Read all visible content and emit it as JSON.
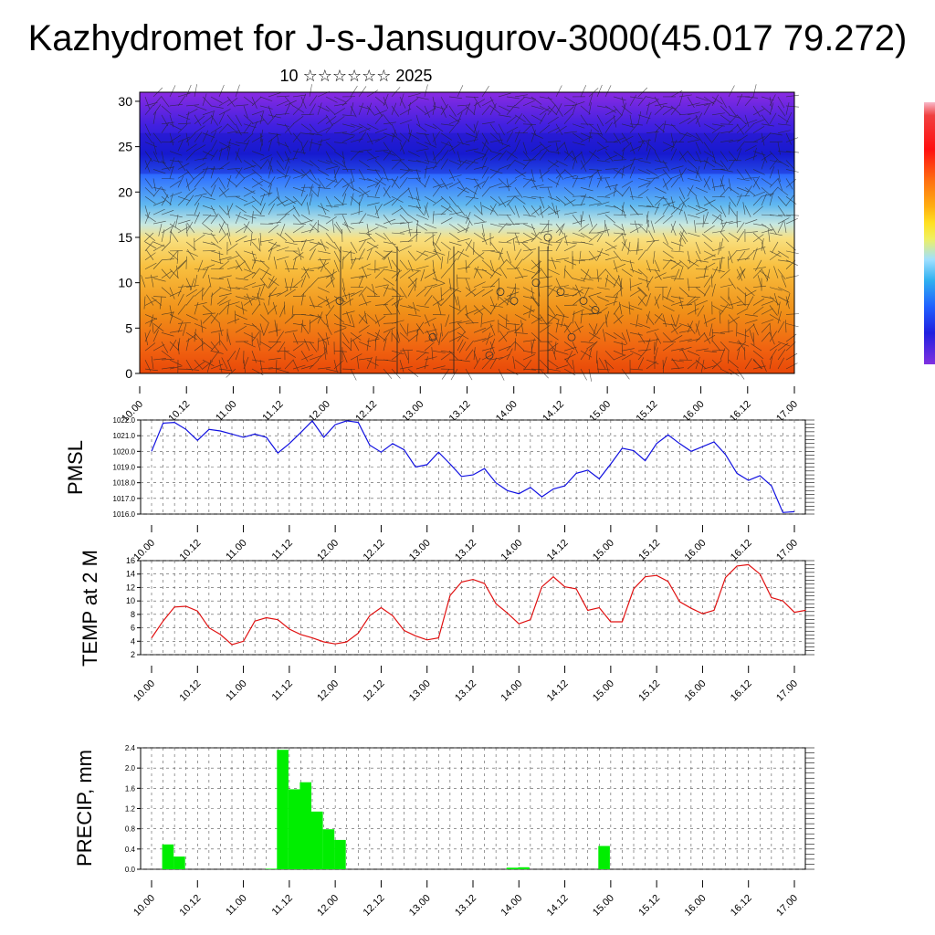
{
  "page": {
    "title": "Kazhydromet for J-s-Jansugurov-3000(45.017 79.272)",
    "subtitle": "10 ☆☆☆☆☆☆ 2025"
  },
  "chart_data": [
    {
      "type": "heatmap",
      "title": "",
      "y_ticks": [
        "0",
        "5",
        "10",
        "15",
        "20",
        "25",
        "30"
      ],
      "ylim": [
        0,
        31
      ],
      "x_tick_labels": [
        "10.00",
        "10.12",
        "11.00",
        "11.12",
        "12.00",
        "12.12",
        "13.00",
        "13.12",
        "14.00",
        "14.12",
        "15.00",
        "15.12",
        "16.00",
        "16.12",
        "17.00"
      ],
      "overlay": "wind barbs and temperature contours",
      "colorbar": {
        "colors": [
          "#f04040",
          "#ff0000",
          "#ff7000",
          "#ffb000",
          "#ffe000",
          "#f0f060",
          "#a0e0ff",
          "#30b0f0",
          "#2060ff",
          "#2020e0",
          "#5020d0",
          "#8030e0"
        ]
      }
    },
    {
      "type": "line",
      "ylabel": "PMSL",
      "ylim": [
        1016,
        1022
      ],
      "y_ticks": [
        "1016.0",
        "1017.0",
        "1018.0",
        "1019.0",
        "1020.0",
        "1021.0",
        "1022.0"
      ],
      "x_tick_labels": [
        "10.00",
        "10.12",
        "11.00",
        "11.12",
        "12.00",
        "12.12",
        "13.00",
        "13.12",
        "14.00",
        "14.12",
        "15.00",
        "15.12",
        "16.00",
        "16.12",
        "17.00"
      ],
      "color": "#1010e0",
      "series": [
        {
          "values": [
            1020.0,
            1021.8,
            1021.85,
            1021.4,
            1020.7,
            1021.4,
            1021.3,
            1021.1,
            1020.9,
            1021.1,
            1020.9,
            1019.9,
            1020.5,
            1021.2,
            1021.95,
            1020.9,
            1021.7,
            1021.95,
            1021.85,
            1020.4,
            1019.95,
            1020.5,
            1020.1,
            1019.0,
            1019.15,
            1019.95,
            1019.2,
            1018.4,
            1018.5,
            1018.9,
            1018.0,
            1017.5,
            1017.3,
            1017.7,
            1017.1,
            1017.6,
            1017.8,
            1018.6,
            1018.8,
            1018.25,
            1019.2,
            1020.2,
            1020.05,
            1019.4,
            1020.5,
            1021.05,
            1020.5,
            1020.0,
            1020.3,
            1020.6,
            1019.8,
            1018.6,
            1018.15,
            1018.45,
            1017.8,
            1016.1,
            1016.15
          ]
        }
      ]
    },
    {
      "type": "line",
      "ylabel": "TEMP at 2 M",
      "ylim": [
        2,
        16
      ],
      "y_ticks": [
        "2",
        "4",
        "6",
        "8",
        "10",
        "12",
        "14",
        "16"
      ],
      "x_tick_labels": [
        "10.00",
        "10.12",
        "11.00",
        "11.12",
        "12.00",
        "12.12",
        "13.00",
        "13.12",
        "14.00",
        "14.12",
        "15.00",
        "15.12",
        "16.00",
        "16.12",
        "17.00"
      ],
      "color": "#e01010",
      "series": [
        {
          "values": [
            4.5,
            7.0,
            9.1,
            9.2,
            8.5,
            6.0,
            5.0,
            3.5,
            4.0,
            7.0,
            7.5,
            7.2,
            5.8,
            5.0,
            4.5,
            3.9,
            3.6,
            3.9,
            5.2,
            7.8,
            9.0,
            7.8,
            5.6,
            4.8,
            4.2,
            4.5,
            10.8,
            12.8,
            13.2,
            12.6,
            9.6,
            8.2,
            6.6,
            7.2,
            12.1,
            13.6,
            12.1,
            11.8,
            8.6,
            9.0,
            6.9,
            6.9,
            11.8,
            13.6,
            13.8,
            12.9,
            9.9,
            8.9,
            8.1,
            8.6,
            13.5,
            15.2,
            15.4,
            14.0,
            10.5,
            10.0,
            8.3,
            8.6
          ]
        }
      ]
    },
    {
      "type": "bar",
      "ylabel": "PRECIP, mm",
      "ylim": [
        0,
        2.4
      ],
      "y_ticks": [
        "0.0",
        "0.4",
        "0.8",
        "1.2",
        "1.6",
        "2.0",
        "2.4"
      ],
      "x_tick_labels": [
        "10.00",
        "10.12",
        "11.00",
        "11.12",
        "12.00",
        "12.12",
        "13.00",
        "13.12",
        "14.00",
        "14.12",
        "15.00",
        "15.12",
        "16.00",
        "16.12",
        "17.00"
      ],
      "color": "#00ee00",
      "values": [
        0,
        0.49,
        0.25,
        0,
        0,
        0,
        0,
        0,
        0,
        0,
        0.01,
        2.36,
        1.58,
        1.72,
        1.14,
        0.79,
        0.58,
        0,
        0,
        0,
        0,
        0,
        0,
        0,
        0,
        0,
        0,
        0,
        0,
        0,
        0,
        0.03,
        0.04,
        0,
        0,
        0,
        0,
        0,
        0,
        0.46,
        0,
        0,
        0,
        0,
        0,
        0,
        0,
        0,
        0,
        0,
        0,
        0,
        0,
        0,
        0,
        0,
        0
      ]
    }
  ]
}
